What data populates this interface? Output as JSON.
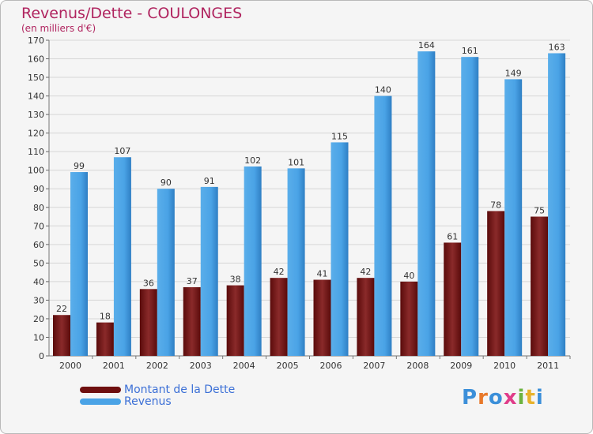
{
  "title": "Revenus/Dette - COULONGES",
  "subtitle": "(en milliers d'€)",
  "colors": {
    "dette": "#7b1a1a",
    "revenus": "#4aa3e6",
    "title": "#b0245f",
    "legend_text": "#3b6fd6"
  },
  "legend": [
    {
      "label": "Montant de la Dette",
      "color": "#6e0f0f"
    },
    {
      "label": "Revenus",
      "color": "#4aa3e6"
    }
  ],
  "logo": {
    "text": "Proxiti"
  },
  "chart_data": {
    "type": "bar",
    "title": "Revenus/Dette - COULONGES",
    "ylabel": "(en milliers d'€)",
    "xlabel": "",
    "categories": [
      "2000",
      "2001",
      "2002",
      "2003",
      "2004",
      "2005",
      "2006",
      "2007",
      "2008",
      "2009",
      "2010",
      "2011"
    ],
    "series": [
      {
        "name": "Montant de la Dette",
        "values": [
          22,
          18,
          36,
          37,
          38,
          42,
          41,
          42,
          40,
          61,
          78,
          75
        ]
      },
      {
        "name": "Revenus",
        "values": [
          99,
          107,
          90,
          91,
          102,
          101,
          115,
          140,
          164,
          161,
          149,
          163
        ]
      }
    ],
    "ylim": [
      0,
      170
    ],
    "ytick_step": 10,
    "grid": true,
    "legend_position": "bottom-left"
  }
}
